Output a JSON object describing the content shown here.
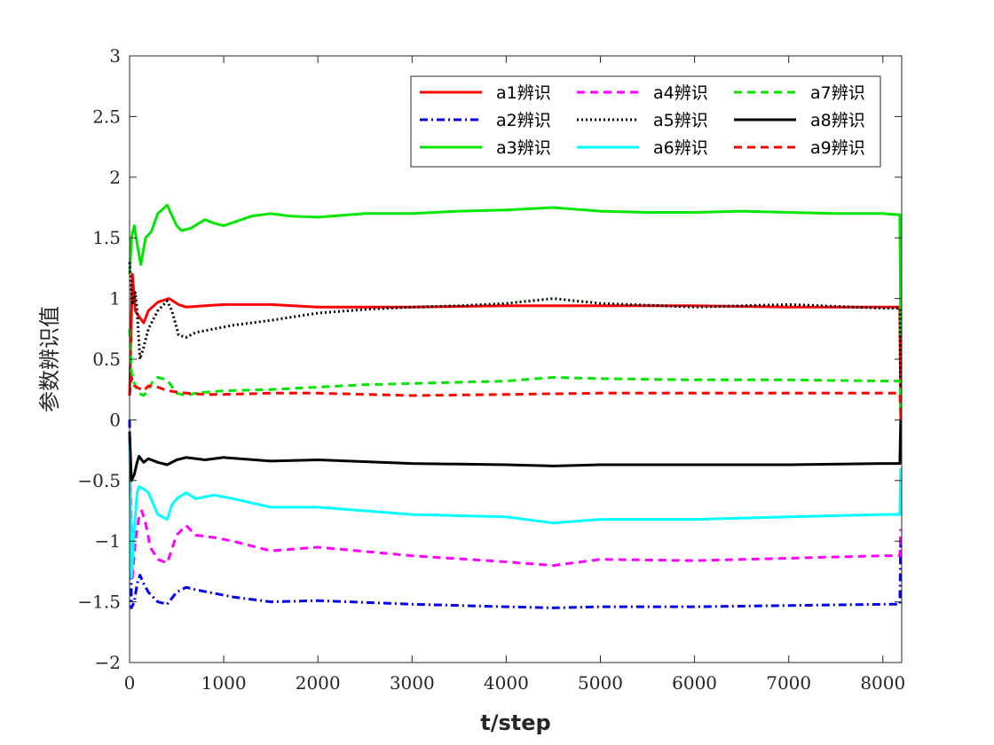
{
  "chart_data": {
    "type": "line",
    "title": "",
    "xlabel": "t/step",
    "ylabel": "参数辨识值",
    "xlim": [
      0,
      8200
    ],
    "ylim": [
      -2,
      3
    ],
    "xticks": [
      0,
      1000,
      2000,
      3000,
      4000,
      5000,
      6000,
      7000,
      8000
    ],
    "yticks": [
      -2,
      -1.5,
      -1,
      -0.5,
      0,
      0.5,
      1,
      1.5,
      2,
      2.5,
      3
    ],
    "ytick_labels": [
      "−2",
      "−1.5",
      "−1",
      "−0.5",
      "0",
      "0.5",
      "1",
      "1.5",
      "2",
      "2.5",
      "3"
    ],
    "grid": false,
    "legend_position": "top-right",
    "legend_columns": 3,
    "series": [
      {
        "name": "a1辨识",
        "color": "#ff0000",
        "dash": "solid",
        "x": [
          0,
          30,
          60,
          100,
          150,
          200,
          300,
          420,
          520,
          600,
          800,
          1000,
          1500,
          2000,
          2500,
          3000,
          4000,
          5000,
          6000,
          7000,
          8000,
          8180,
          8190
        ],
        "y": [
          0.2,
          1.2,
          0.9,
          0.85,
          0.8,
          0.9,
          0.97,
          1.0,
          0.95,
          0.93,
          0.94,
          0.95,
          0.95,
          0.93,
          0.93,
          0.93,
          0.94,
          0.94,
          0.94,
          0.93,
          0.93,
          0.93,
          0.0
        ]
      },
      {
        "name": "a2辨识",
        "color": "#0000ee",
        "dash": "dashdot",
        "x": [
          0,
          20,
          50,
          80,
          110,
          150,
          200,
          300,
          400,
          500,
          600,
          700,
          900,
          1100,
          1500,
          2000,
          3000,
          4000,
          4500,
          5000,
          6000,
          7000,
          8000,
          8180,
          8190
        ],
        "y": [
          0,
          -1.55,
          -1.5,
          -1.35,
          -1.28,
          -1.35,
          -1.42,
          -1.5,
          -1.52,
          -1.42,
          -1.38,
          -1.4,
          -1.43,
          -1.46,
          -1.5,
          -1.49,
          -1.52,
          -1.54,
          -1.55,
          -1.54,
          -1.54,
          -1.53,
          -1.52,
          -1.52,
          -1.0
        ]
      },
      {
        "name": "a3辨识",
        "color": "#00e600",
        "dash": "solid",
        "x": [
          0,
          20,
          50,
          80,
          120,
          170,
          230,
          300,
          400,
          440,
          500,
          550,
          650,
          800,
          900,
          1000,
          1300,
          1500,
          1700,
          2000,
          2500,
          3000,
          3500,
          4000,
          4500,
          5000,
          5500,
          6000,
          6500,
          7000,
          7500,
          8000,
          8180,
          8190
        ],
        "y": [
          1.2,
          1.5,
          1.6,
          1.45,
          1.28,
          1.5,
          1.55,
          1.7,
          1.77,
          1.7,
          1.6,
          1.56,
          1.58,
          1.65,
          1.62,
          1.6,
          1.68,
          1.7,
          1.68,
          1.67,
          1.7,
          1.7,
          1.72,
          1.73,
          1.75,
          1.72,
          1.71,
          1.71,
          1.72,
          1.71,
          1.7,
          1.7,
          1.69,
          0.7
        ]
      },
      {
        "name": "a4辨识",
        "color": "#ff00ff",
        "dash": "dashed",
        "x": [
          0,
          30,
          60,
          100,
          130,
          170,
          220,
          300,
          400,
          500,
          600,
          700,
          900,
          1100,
          1500,
          2000,
          3000,
          4000,
          4500,
          5000,
          6000,
          7000,
          8000,
          8180,
          8190
        ],
        "y": [
          -0.2,
          -1.3,
          -1.0,
          -0.8,
          -0.75,
          -0.85,
          -1.05,
          -1.15,
          -1.18,
          -0.95,
          -0.87,
          -0.95,
          -0.97,
          -1.0,
          -1.08,
          -1.05,
          -1.12,
          -1.17,
          -1.2,
          -1.15,
          -1.16,
          -1.14,
          -1.12,
          -1.12,
          -0.9
        ]
      },
      {
        "name": "a5辨识",
        "color": "#000000",
        "dash": "dotted",
        "x": [
          0,
          30,
          60,
          80,
          110,
          150,
          200,
          300,
          400,
          450,
          520,
          600,
          700,
          900,
          1100,
          1500,
          2000,
          2500,
          3000,
          3500,
          4000,
          4500,
          5000,
          6000,
          7000,
          8000,
          8180,
          8190
        ],
        "y": [
          1.3,
          0.95,
          1.05,
          0.9,
          0.5,
          0.6,
          0.75,
          0.9,
          0.98,
          0.9,
          0.7,
          0.68,
          0.72,
          0.75,
          0.78,
          0.82,
          0.88,
          0.91,
          0.93,
          0.94,
          0.96,
          1.0,
          0.96,
          0.93,
          0.95,
          0.92,
          0.92,
          0.1
        ]
      },
      {
        "name": "a6辨识",
        "color": "#00ffff",
        "dash": "solid",
        "x": [
          0,
          20,
          50,
          80,
          100,
          150,
          200,
          300,
          400,
          450,
          500,
          600,
          700,
          900,
          1100,
          1500,
          2000,
          3000,
          4000,
          4500,
          5000,
          6000,
          7000,
          8000,
          8180,
          8190
        ],
        "y": [
          -0.2,
          -1.3,
          -0.9,
          -0.6,
          -0.55,
          -0.57,
          -0.6,
          -0.78,
          -0.82,
          -0.7,
          -0.65,
          -0.6,
          -0.65,
          -0.62,
          -0.65,
          -0.72,
          -0.72,
          -0.78,
          -0.8,
          -0.85,
          -0.82,
          -0.82,
          -0.8,
          -0.78,
          -0.78,
          -0.4
        ]
      },
      {
        "name": "a7辨识",
        "color": "#00e600",
        "dash": "dashed",
        "x": [
          0,
          20,
          50,
          100,
          150,
          200,
          250,
          300,
          400,
          500,
          600,
          700,
          1000,
          1500,
          2000,
          2500,
          3000,
          4000,
          4500,
          5000,
          6000,
          7000,
          8000,
          8180,
          8190
        ],
        "y": [
          0.75,
          0.4,
          0.3,
          0.22,
          0.2,
          0.25,
          0.32,
          0.35,
          0.33,
          0.22,
          0.2,
          0.22,
          0.24,
          0.25,
          0.27,
          0.29,
          0.3,
          0.32,
          0.35,
          0.34,
          0.33,
          0.33,
          0.32,
          0.32,
          0.1
        ]
      },
      {
        "name": "a8辨识",
        "color": "#000000",
        "dash": "solid",
        "x": [
          0,
          20,
          50,
          80,
          100,
          150,
          200,
          300,
          400,
          500,
          600,
          800,
          1000,
          1500,
          2000,
          3000,
          4000,
          4500,
          5000,
          6000,
          7000,
          8000,
          8180,
          8190
        ],
        "y": [
          -0.1,
          -0.5,
          -0.45,
          -0.35,
          -0.3,
          -0.35,
          -0.32,
          -0.35,
          -0.37,
          -0.33,
          -0.31,
          -0.33,
          -0.31,
          -0.34,
          -0.33,
          -0.36,
          -0.37,
          -0.38,
          -0.37,
          -0.37,
          -0.37,
          -0.36,
          -0.36,
          0.0
        ]
      },
      {
        "name": "a9辨识",
        "color": "#ff0000",
        "dash": "dashed",
        "x": [
          0,
          20,
          50,
          100,
          150,
          200,
          300,
          400,
          500,
          600,
          800,
          1000,
          1500,
          2000,
          3000,
          4000,
          5000,
          6000,
          7000,
          8000,
          8180,
          8190
        ],
        "y": [
          0.2,
          0.35,
          0.28,
          0.26,
          0.24,
          0.28,
          0.27,
          0.24,
          0.23,
          0.22,
          0.21,
          0.21,
          0.22,
          0.22,
          0.2,
          0.21,
          0.22,
          0.22,
          0.22,
          0.22,
          0.22,
          0.05
        ]
      }
    ]
  }
}
